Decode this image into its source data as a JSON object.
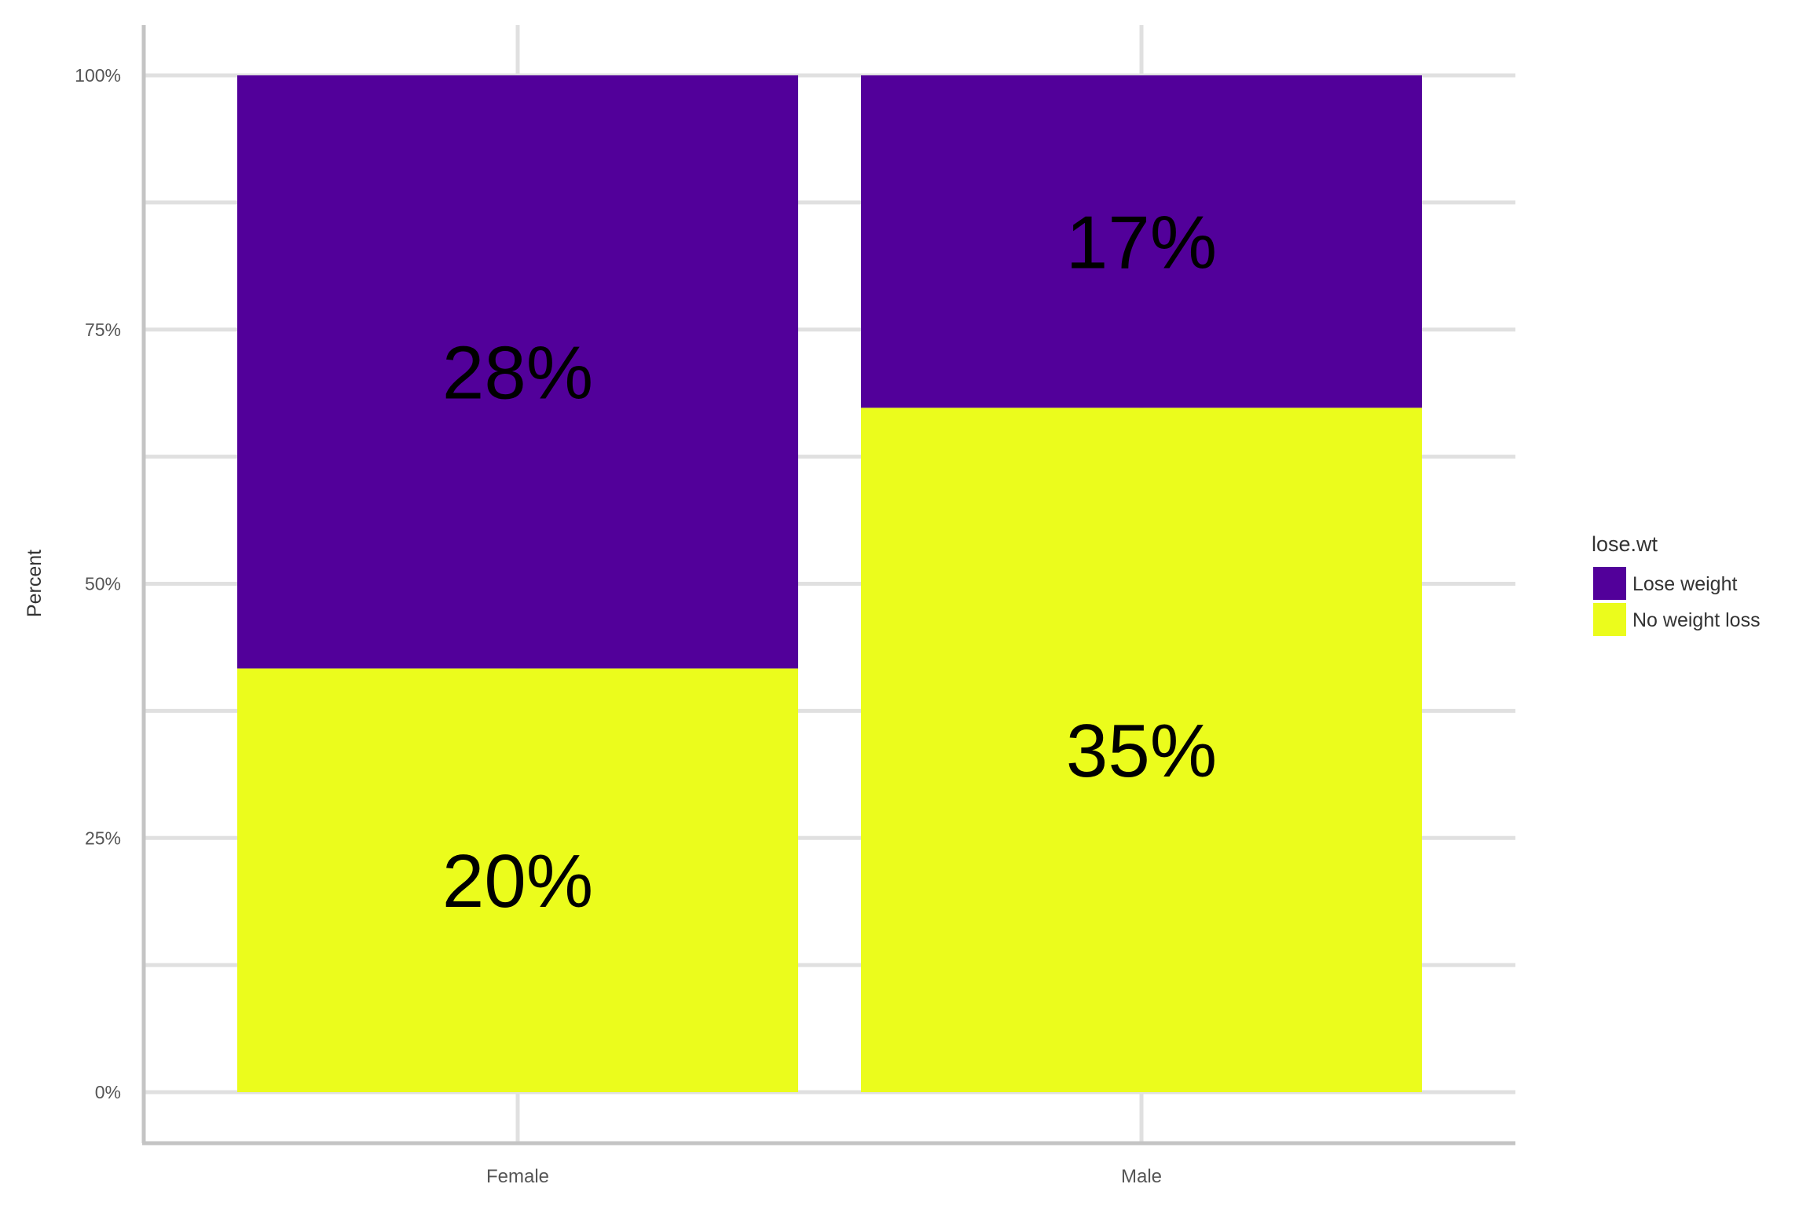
{
  "chart_data": {
    "type": "bar",
    "stacked": "fill",
    "categories": [
      "Female",
      "Male"
    ],
    "series": [
      {
        "name": "Lose weight",
        "values": [
          28,
          17
        ],
        "labels": [
          "28%",
          "17%"
        ],
        "color": "#52009a"
      },
      {
        "name": "No weight loss",
        "values": [
          20,
          35
        ],
        "labels": [
          "20%",
          "35%"
        ],
        "color": "#ebfc1c"
      }
    ],
    "xlabel": "",
    "ylabel": "Percent",
    "ylim": [
      0,
      100
    ],
    "yticks": [
      "0%",
      "25%",
      "50%",
      "75%",
      "100%"
    ],
    "ytick_values": [
      0,
      25,
      50,
      75,
      100
    ],
    "grid": true,
    "legend": {
      "title": "lose.wt",
      "placement": "right"
    }
  }
}
